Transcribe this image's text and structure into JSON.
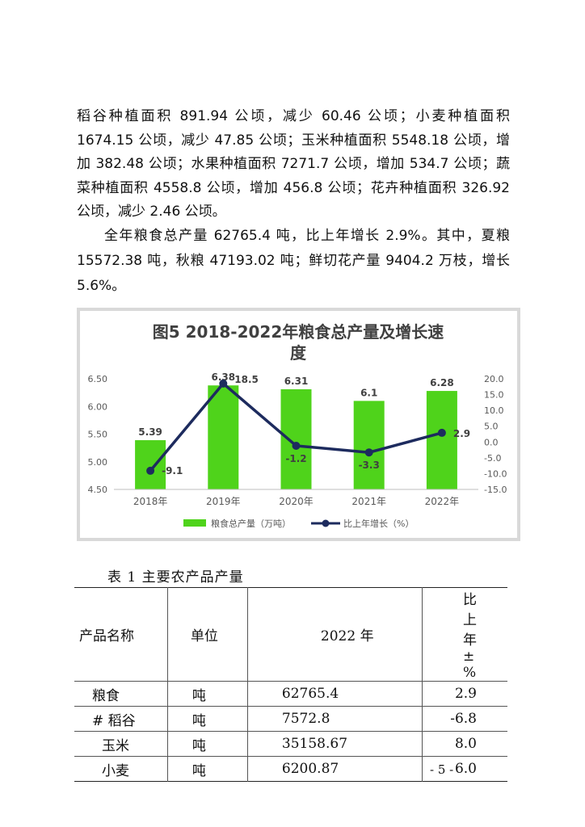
{
  "paragraphs": [
    "稻谷种植面积 891.94 公顷，减少 60.46 公顷；小麦种植面积 1674.15 公顷，减少 47.85 公顷；玉米种植面积 5548.18 公顷，增加 382.48 公顷；水果种植面积 7271.7 公顷，增加 534.7 公顷；蔬菜种植面积 4558.8 公顷，增加 456.8 公顷；花卉种植面积 326.92 公顷，减少 2.46 公顷。",
    "全年粮食总产量 62765.4 吨，比上年增长 2.9%。其中，夏粮 15572.38 吨，秋粮 47193.02 吨；鲜切花产量 9404.2 万枝，增长 5.6%。"
  ],
  "chart_data": {
    "type": "bar",
    "title_line1": "图5  2018-2022年粮食总产量及增长速",
    "title_line2": "度",
    "categories": [
      "2018年",
      "2019年",
      "2020年",
      "2021年",
      "2022年"
    ],
    "series": [
      {
        "name": "粮食总产量（万吨）",
        "type": "bar",
        "axis": "left",
        "values": [
          5.39,
          6.38,
          6.31,
          6.1,
          6.28
        ],
        "labels": [
          "5.39",
          "6.38",
          "6.31",
          "6.1",
          "6.28"
        ]
      },
      {
        "name": "比上年增长（%）",
        "type": "line",
        "axis": "right",
        "values": [
          -9.1,
          18.5,
          -1.2,
          -3.3,
          2.9
        ],
        "labels": [
          "-9.1",
          "18.5",
          "-1.2",
          "-3.3",
          "2.9"
        ]
      }
    ],
    "y_left": {
      "min": 4.5,
      "max": 6.5,
      "ticks": [
        "4.50",
        "5.00",
        "5.50",
        "6.00",
        "6.50"
      ]
    },
    "y_right": {
      "min": -15,
      "max": 20,
      "ticks": [
        "-15.0",
        "-10.0",
        "-5.0",
        "0.0",
        "5.0",
        "10.0",
        "15.0",
        "20.0"
      ]
    },
    "grid": false,
    "legend": "bottom",
    "colors": {
      "bar": "#4fd31b",
      "line": "#1d2b5e",
      "frame": "#d9d9d9",
      "axis_text": "#595959"
    }
  },
  "table": {
    "caption": "表 1    主要农产品产量",
    "headers": [
      "产品名称",
      "单位",
      "2022 年",
      "比上年±%"
    ],
    "rows": [
      [
        "粮食",
        "吨",
        "62765.4",
        "2.9"
      ],
      [
        "# 稻谷",
        "吨",
        "7572.8",
        "-6.8"
      ],
      [
        "玉米",
        "吨",
        "35158.67",
        "8.0"
      ],
      [
        "小麦",
        "吨",
        "6200.87",
        "6.0"
      ]
    ]
  },
  "page_number": "- 5 -"
}
